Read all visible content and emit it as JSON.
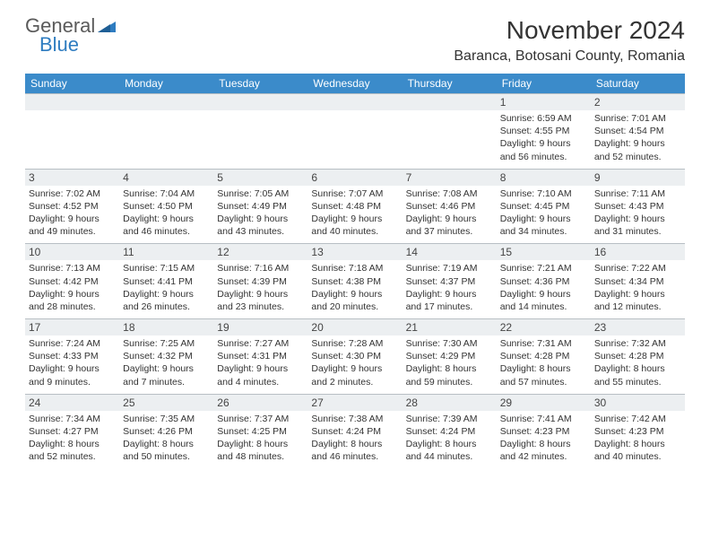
{
  "brand": {
    "general": "General",
    "blue": "Blue"
  },
  "header": {
    "title": "November 2024",
    "location": "Baranca, Botosani County, Romania"
  },
  "colors": {
    "header_bg": "#3b8bca",
    "header_text": "#ffffff",
    "daynum_bg": "#eceff1",
    "border": "#b8bfc4",
    "text": "#333333",
    "logo_gray": "#5a5a5a",
    "logo_blue": "#2e7cc0"
  },
  "dayNames": [
    "Sunday",
    "Monday",
    "Tuesday",
    "Wednesday",
    "Thursday",
    "Friday",
    "Saturday"
  ],
  "weeks": [
    [
      {
        "n": "",
        "lines": []
      },
      {
        "n": "",
        "lines": []
      },
      {
        "n": "",
        "lines": []
      },
      {
        "n": "",
        "lines": []
      },
      {
        "n": "",
        "lines": []
      },
      {
        "n": "1",
        "lines": [
          "Sunrise: 6:59 AM",
          "Sunset: 4:55 PM",
          "Daylight: 9 hours",
          "and 56 minutes."
        ]
      },
      {
        "n": "2",
        "lines": [
          "Sunrise: 7:01 AM",
          "Sunset: 4:54 PM",
          "Daylight: 9 hours",
          "and 52 minutes."
        ]
      }
    ],
    [
      {
        "n": "3",
        "lines": [
          "Sunrise: 7:02 AM",
          "Sunset: 4:52 PM",
          "Daylight: 9 hours",
          "and 49 minutes."
        ]
      },
      {
        "n": "4",
        "lines": [
          "Sunrise: 7:04 AM",
          "Sunset: 4:50 PM",
          "Daylight: 9 hours",
          "and 46 minutes."
        ]
      },
      {
        "n": "5",
        "lines": [
          "Sunrise: 7:05 AM",
          "Sunset: 4:49 PM",
          "Daylight: 9 hours",
          "and 43 minutes."
        ]
      },
      {
        "n": "6",
        "lines": [
          "Sunrise: 7:07 AM",
          "Sunset: 4:48 PM",
          "Daylight: 9 hours",
          "and 40 minutes."
        ]
      },
      {
        "n": "7",
        "lines": [
          "Sunrise: 7:08 AM",
          "Sunset: 4:46 PM",
          "Daylight: 9 hours",
          "and 37 minutes."
        ]
      },
      {
        "n": "8",
        "lines": [
          "Sunrise: 7:10 AM",
          "Sunset: 4:45 PM",
          "Daylight: 9 hours",
          "and 34 minutes."
        ]
      },
      {
        "n": "9",
        "lines": [
          "Sunrise: 7:11 AM",
          "Sunset: 4:43 PM",
          "Daylight: 9 hours",
          "and 31 minutes."
        ]
      }
    ],
    [
      {
        "n": "10",
        "lines": [
          "Sunrise: 7:13 AM",
          "Sunset: 4:42 PM",
          "Daylight: 9 hours",
          "and 28 minutes."
        ]
      },
      {
        "n": "11",
        "lines": [
          "Sunrise: 7:15 AM",
          "Sunset: 4:41 PM",
          "Daylight: 9 hours",
          "and 26 minutes."
        ]
      },
      {
        "n": "12",
        "lines": [
          "Sunrise: 7:16 AM",
          "Sunset: 4:39 PM",
          "Daylight: 9 hours",
          "and 23 minutes."
        ]
      },
      {
        "n": "13",
        "lines": [
          "Sunrise: 7:18 AM",
          "Sunset: 4:38 PM",
          "Daylight: 9 hours",
          "and 20 minutes."
        ]
      },
      {
        "n": "14",
        "lines": [
          "Sunrise: 7:19 AM",
          "Sunset: 4:37 PM",
          "Daylight: 9 hours",
          "and 17 minutes."
        ]
      },
      {
        "n": "15",
        "lines": [
          "Sunrise: 7:21 AM",
          "Sunset: 4:36 PM",
          "Daylight: 9 hours",
          "and 14 minutes."
        ]
      },
      {
        "n": "16",
        "lines": [
          "Sunrise: 7:22 AM",
          "Sunset: 4:34 PM",
          "Daylight: 9 hours",
          "and 12 minutes."
        ]
      }
    ],
    [
      {
        "n": "17",
        "lines": [
          "Sunrise: 7:24 AM",
          "Sunset: 4:33 PM",
          "Daylight: 9 hours",
          "and 9 minutes."
        ]
      },
      {
        "n": "18",
        "lines": [
          "Sunrise: 7:25 AM",
          "Sunset: 4:32 PM",
          "Daylight: 9 hours",
          "and 7 minutes."
        ]
      },
      {
        "n": "19",
        "lines": [
          "Sunrise: 7:27 AM",
          "Sunset: 4:31 PM",
          "Daylight: 9 hours",
          "and 4 minutes."
        ]
      },
      {
        "n": "20",
        "lines": [
          "Sunrise: 7:28 AM",
          "Sunset: 4:30 PM",
          "Daylight: 9 hours",
          "and 2 minutes."
        ]
      },
      {
        "n": "21",
        "lines": [
          "Sunrise: 7:30 AM",
          "Sunset: 4:29 PM",
          "Daylight: 8 hours",
          "and 59 minutes."
        ]
      },
      {
        "n": "22",
        "lines": [
          "Sunrise: 7:31 AM",
          "Sunset: 4:28 PM",
          "Daylight: 8 hours",
          "and 57 minutes."
        ]
      },
      {
        "n": "23",
        "lines": [
          "Sunrise: 7:32 AM",
          "Sunset: 4:28 PM",
          "Daylight: 8 hours",
          "and 55 minutes."
        ]
      }
    ],
    [
      {
        "n": "24",
        "lines": [
          "Sunrise: 7:34 AM",
          "Sunset: 4:27 PM",
          "Daylight: 8 hours",
          "and 52 minutes."
        ]
      },
      {
        "n": "25",
        "lines": [
          "Sunrise: 7:35 AM",
          "Sunset: 4:26 PM",
          "Daylight: 8 hours",
          "and 50 minutes."
        ]
      },
      {
        "n": "26",
        "lines": [
          "Sunrise: 7:37 AM",
          "Sunset: 4:25 PM",
          "Daylight: 8 hours",
          "and 48 minutes."
        ]
      },
      {
        "n": "27",
        "lines": [
          "Sunrise: 7:38 AM",
          "Sunset: 4:24 PM",
          "Daylight: 8 hours",
          "and 46 minutes."
        ]
      },
      {
        "n": "28",
        "lines": [
          "Sunrise: 7:39 AM",
          "Sunset: 4:24 PM",
          "Daylight: 8 hours",
          "and 44 minutes."
        ]
      },
      {
        "n": "29",
        "lines": [
          "Sunrise: 7:41 AM",
          "Sunset: 4:23 PM",
          "Daylight: 8 hours",
          "and 42 minutes."
        ]
      },
      {
        "n": "30",
        "lines": [
          "Sunrise: 7:42 AM",
          "Sunset: 4:23 PM",
          "Daylight: 8 hours",
          "and 40 minutes."
        ]
      }
    ]
  ]
}
